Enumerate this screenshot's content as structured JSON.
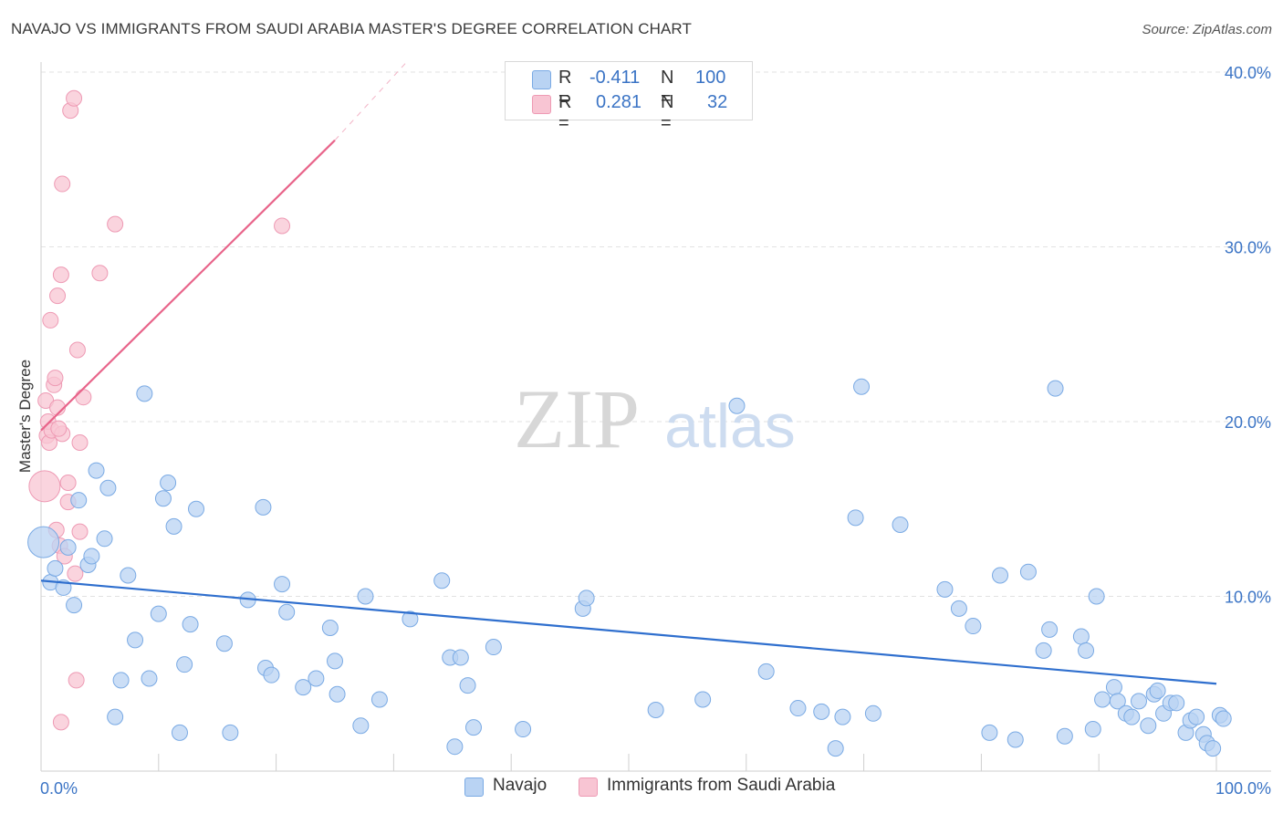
{
  "header": {
    "title": "NAVAJO VS IMMIGRANTS FROM SAUDI ARABIA MASTER'S DEGREE CORRELATION CHART",
    "source": "Source: ZipAtlas.com"
  },
  "legend": {
    "navajo": {
      "r_label": "R =",
      "r_value": "-0.411",
      "n_label": "N =",
      "n_value": "100"
    },
    "saudi": {
      "r_label": "R =",
      "r_value": "0.281",
      "n_label": "N =",
      "n_value": "32"
    }
  },
  "bottom_legend": {
    "navajo": "Navajo",
    "saudi": "Immigrants from Saudi Arabia"
  },
  "watermark": {
    "zip": "ZIP",
    "atlas": "atlas"
  },
  "colors": {
    "navajo_fill": "#b9d3f3",
    "navajo_stroke": "#7aaae4",
    "navajo_line": "#2f6fce",
    "saudi_fill": "#f8c5d3",
    "saudi_stroke": "#ee9ab4",
    "saudi_line": "#e8648a",
    "axis_text": "#3b74c5",
    "grid": "#e2e2e2"
  },
  "chart_data": {
    "type": "scatter",
    "title": "NAVAJO VS IMMIGRANTS FROM SAUDI ARABIA MASTER'S DEGREE CORRELATION CHART",
    "xlabel": "",
    "ylabel": "Master's Degree",
    "xlim": [
      0,
      100
    ],
    "ylim": [
      0,
      40
    ],
    "x_tick_labels": [
      {
        "value": 0,
        "label": "0.0%"
      },
      {
        "value": 100,
        "label": "100.0%"
      }
    ],
    "y_tick_labels": [
      {
        "value": 10,
        "label": "10.0%"
      },
      {
        "value": 20,
        "label": "20.0%"
      },
      {
        "value": 30,
        "label": "30.0%"
      },
      {
        "value": 40,
        "label": "40.0%"
      }
    ],
    "x_minor_ticks": [
      0,
      10,
      20,
      30,
      40,
      50,
      60,
      70,
      80,
      90,
      100
    ],
    "series": [
      {
        "name": "Navajo",
        "color": "#7aaae4",
        "R": -0.411,
        "N": 100,
        "trend": {
          "x": [
            0,
            100
          ],
          "y": [
            10.9,
            5.0
          ]
        },
        "points": [
          [
            0.2,
            13.1,
            "L"
          ],
          [
            0.8,
            10.8
          ],
          [
            1.2,
            11.6
          ],
          [
            1.9,
            10.5
          ],
          [
            2.3,
            12.8
          ],
          [
            2.8,
            9.5
          ],
          [
            3.2,
            15.5
          ],
          [
            4.0,
            11.8
          ],
          [
            4.3,
            12.3
          ],
          [
            4.7,
            17.2
          ],
          [
            5.4,
            13.3
          ],
          [
            5.7,
            16.2
          ],
          [
            6.3,
            3.1
          ],
          [
            6.8,
            5.2
          ],
          [
            7.4,
            11.2
          ],
          [
            8.0,
            7.5
          ],
          [
            8.8,
            21.6
          ],
          [
            9.2,
            5.3
          ],
          [
            10.0,
            9.0
          ],
          [
            10.4,
            15.6
          ],
          [
            10.8,
            16.5
          ],
          [
            11.3,
            14.0
          ],
          [
            11.8,
            2.2
          ],
          [
            12.2,
            6.1
          ],
          [
            12.7,
            8.4
          ],
          [
            13.2,
            15.0
          ],
          [
            15.6,
            7.3
          ],
          [
            16.1,
            2.2
          ],
          [
            17.6,
            9.8
          ],
          [
            18.9,
            15.1
          ],
          [
            19.1,
            5.9
          ],
          [
            19.6,
            5.5
          ],
          [
            20.5,
            10.7
          ],
          [
            20.9,
            9.1
          ],
          [
            22.3,
            4.8
          ],
          [
            23.4,
            5.3
          ],
          [
            24.6,
            8.2
          ],
          [
            25.0,
            6.3
          ],
          [
            25.2,
            4.4
          ],
          [
            27.2,
            2.6
          ],
          [
            27.6,
            10.0
          ],
          [
            28.8,
            4.1
          ],
          [
            31.4,
            8.7
          ],
          [
            34.1,
            10.9
          ],
          [
            34.8,
            6.5
          ],
          [
            35.2,
            1.4
          ],
          [
            35.7,
            6.5
          ],
          [
            36.3,
            4.9
          ],
          [
            36.8,
            2.5
          ],
          [
            38.5,
            7.1
          ],
          [
            41.0,
            2.4
          ],
          [
            46.1,
            9.3
          ],
          [
            46.4,
            9.9
          ],
          [
            52.3,
            3.5
          ],
          [
            56.3,
            4.1
          ],
          [
            59.2,
            20.9
          ],
          [
            61.7,
            5.7
          ],
          [
            64.4,
            3.6
          ],
          [
            66.4,
            3.4
          ],
          [
            67.6,
            1.3
          ],
          [
            68.2,
            3.1
          ],
          [
            69.3,
            14.5
          ],
          [
            69.8,
            22.0
          ],
          [
            70.8,
            3.3
          ],
          [
            73.1,
            14.1
          ],
          [
            76.9,
            10.4
          ],
          [
            78.1,
            9.3
          ],
          [
            79.3,
            8.3
          ],
          [
            80.7,
            2.2
          ],
          [
            81.6,
            11.2
          ],
          [
            82.9,
            1.8
          ],
          [
            84.0,
            11.4
          ],
          [
            85.3,
            6.9
          ],
          [
            85.8,
            8.1
          ],
          [
            86.3,
            21.9
          ],
          [
            87.1,
            2.0
          ],
          [
            88.5,
            7.7
          ],
          [
            88.9,
            6.9
          ],
          [
            89.5,
            2.4
          ],
          [
            89.8,
            10.0
          ],
          [
            90.3,
            4.1
          ],
          [
            91.3,
            4.8
          ],
          [
            91.6,
            4.0
          ],
          [
            92.3,
            3.3
          ],
          [
            92.8,
            3.1
          ],
          [
            93.4,
            4.0
          ],
          [
            94.2,
            2.6
          ],
          [
            94.7,
            4.4
          ],
          [
            95.5,
            3.3
          ],
          [
            96.1,
            3.9
          ],
          [
            96.6,
            3.9
          ],
          [
            97.4,
            2.2
          ],
          [
            97.8,
            2.9
          ],
          [
            98.3,
            3.1
          ],
          [
            98.9,
            2.1
          ],
          [
            99.2,
            1.6
          ],
          [
            99.7,
            1.3
          ],
          [
            100.3,
            3.2
          ],
          [
            100.6,
            3.0
          ],
          [
            95.0,
            4.6
          ]
        ]
      },
      {
        "name": "Immigrants from Saudi Arabia",
        "color": "#ee9ab4",
        "R": 0.281,
        "N": 32,
        "trend": {
          "x": [
            0,
            25
          ],
          "y": [
            19.5,
            36.1
          ],
          "dashed_extension": {
            "x": [
              25,
              31
            ],
            "y": [
              36.1,
              40.5
            ]
          }
        },
        "points": [
          [
            0.3,
            16.3,
            "L"
          ],
          [
            0.4,
            21.2
          ],
          [
            0.5,
            19.2
          ],
          [
            0.6,
            20.0
          ],
          [
            0.7,
            18.8
          ],
          [
            0.8,
            25.8
          ],
          [
            0.9,
            19.5
          ],
          [
            1.1,
            22.1
          ],
          [
            1.2,
            22.5
          ],
          [
            1.3,
            13.8
          ],
          [
            1.4,
            20.8
          ],
          [
            1.4,
            27.2
          ],
          [
            1.6,
            12.9
          ],
          [
            1.7,
            28.4
          ],
          [
            1.7,
            2.8
          ],
          [
            1.8,
            33.6
          ],
          [
            1.8,
            19.3
          ],
          [
            2.0,
            12.3
          ],
          [
            2.3,
            15.4
          ],
          [
            2.3,
            16.5
          ],
          [
            2.5,
            37.8
          ],
          [
            2.8,
            38.5
          ],
          [
            2.9,
            11.3
          ],
          [
            3.0,
            5.2
          ],
          [
            3.1,
            24.1
          ],
          [
            3.3,
            18.8
          ],
          [
            3.3,
            13.7
          ],
          [
            3.6,
            21.4
          ],
          [
            5.0,
            28.5
          ],
          [
            6.3,
            31.3
          ],
          [
            20.5,
            31.2
          ],
          [
            1.5,
            19.6
          ]
        ]
      }
    ]
  }
}
